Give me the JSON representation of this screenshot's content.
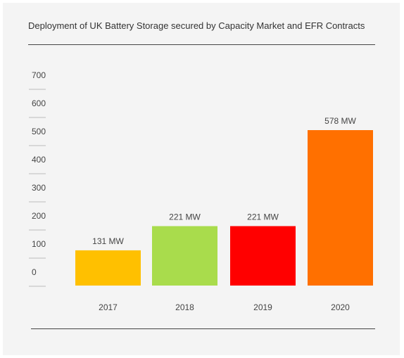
{
  "chart_data": {
    "type": "bar",
    "title": "Deployment of UK Battery Storage secured by Capacity Market and EFR Contracts",
    "categories": [
      "2017",
      "2018",
      "2019",
      "2020"
    ],
    "values": [
      131,
      221,
      221,
      578
    ],
    "data_labels": [
      "131 MW",
      "221 MW",
      "221 MW",
      "578 MW"
    ],
    "colors": [
      "#ffc000",
      "#a9dc4c",
      "#ff0000",
      "#ff7000"
    ],
    "y_ticks": [
      "700",
      "600",
      "500",
      "400",
      "300",
      "200",
      "100",
      "0"
    ],
    "xlabel": "",
    "ylabel": "",
    "grid": false,
    "legend": "none"
  }
}
